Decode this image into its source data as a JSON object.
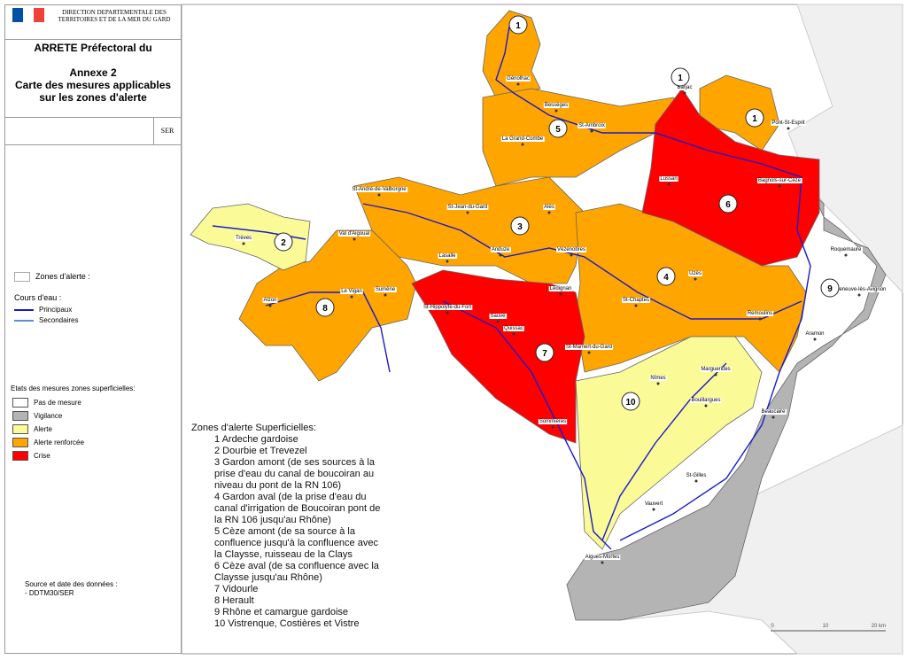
{
  "header": {
    "organization": "DIRECTION DEPARTEMENTALE DES TERRITOIRES ET DE LA MER DU GARD",
    "title": "ARRETE Préfectoral du",
    "annex": "Annexe 2",
    "subtitle_1": "Carte des mesures applicables",
    "subtitle_2": "sur les zones d'alerte",
    "code": "SER"
  },
  "legend": {
    "zones": "Zones d'alerte :",
    "rivers_title": "Cours d'eau :",
    "rivers": [
      {
        "label": "Principaux",
        "color": "#1a1acc"
      },
      {
        "label": "Secondaires",
        "color": "#5b8fd0"
      }
    ],
    "measures_title": "Etats des mesures zones superficielles:",
    "measures": [
      {
        "label": "Pas de mesure",
        "color": "#ffffff"
      },
      {
        "label": "Vigilance",
        "color": "#b4b4b4"
      },
      {
        "label": "Alerte",
        "color": "#fafa96"
      },
      {
        "label": "Alerte renforcée",
        "color": "#ffa500"
      },
      {
        "label": "Crise",
        "color": "#ff0000"
      }
    ]
  },
  "source": {
    "title": "Source et date des données :",
    "value": "- DDTM30/SER"
  },
  "zone_list": {
    "title": "Zones d'alerte Superficielles:",
    "items": [
      "1 Ardeche gardoise",
      "2 Dourbie et Trevezel",
      "3 Gardon amont (de ses sources à la prise d'eau du canal de boucoiran au niveau du pont de la RN 106)",
      "4 Gardon aval (de la prise d'eau du canal d'irrigation de Boucoiran pont de la RN 106 jusqu'au Rhône)",
      "5 Cèze amont (de sa source à la confluence jusqu'à la confluence avec  la Claysse, ruisseau de la Clays",
      "6 Cèze aval (de sa confluence avec la Claysse jusqu'au Rhône)",
      "7 Vidourle",
      "8 Herault",
      "9 Rhône et camargue gardoise",
      "10 Vistrenque, Costières et Vistre"
    ]
  },
  "map": {
    "zone_numbers": [
      "1",
      "1",
      "1",
      "5",
      "6",
      "3",
      "2",
      "4",
      "9",
      "8",
      "7",
      "10"
    ],
    "towns": [
      "Génolhac",
      "Barjac",
      "Bessèges",
      "St-Ambroix",
      "Pont-St-Esprit",
      "La Grand-Combe",
      "Lussan",
      "Bagnols-sur-Cèze",
      "St-André-de-Valborgne",
      "St-Jean-du-Gard",
      "Alès",
      "Trèves",
      "Val d'Aigoual",
      "Lasalle",
      "Anduze",
      "Vézénobres",
      "Roquemaure",
      "Uzès",
      "Le Vigan",
      "Sumène",
      "Alzon",
      "Villeneuve-lès-Avignon",
      "Lédignan",
      "St-Chaptes",
      "St-Hippolyte-du-Fort",
      "Remoulins",
      "Sauve",
      "Quissac",
      "St-Mamert-du-Gard",
      "Aramon",
      "Nîmes",
      "Marguerittes",
      "Bouillargues",
      "Beaucaire",
      "Sommières",
      "St-Gilles",
      "Vauvert",
      "Aigues-Mortes"
    ],
    "scale": [
      "0",
      "10",
      "20 km"
    ]
  }
}
